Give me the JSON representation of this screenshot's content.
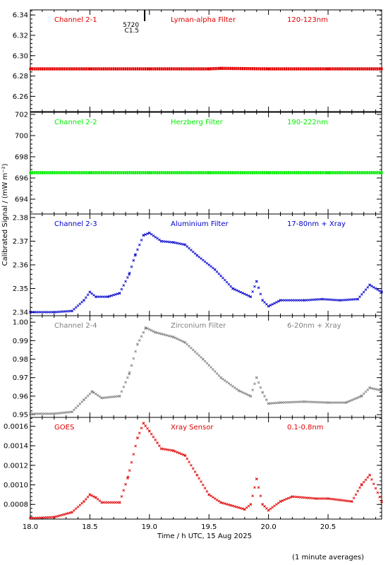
{
  "ylabel": "Calibrated Signal / (mW m⁻²)",
  "xlabel": "Time / h UTC, 15 Aug 2025",
  "footnote": "(1 minute averages)",
  "xlim": [
    18.0,
    20.95
  ],
  "xticks": [
    "18.0",
    "18.5",
    "19.0",
    "19.5",
    "20.0",
    "20.5"
  ],
  "event_marker": {
    "label_top": "5720",
    "label_bottom": "C1.5",
    "time": 18.96
  },
  "chart_data": [
    {
      "type": "scatter",
      "channel_label": "Channel 2-1",
      "filter_label": "Lyman-alpha Filter",
      "band_label": "120-123nm",
      "color": "#e00000",
      "marker": "dot",
      "ylim": [
        6.245,
        6.345
      ],
      "yticks": [
        "6.26",
        "6.28",
        "6.30",
        "6.32",
        "6.34"
      ],
      "series": [
        {
          "x": [
            18.0,
            18.5,
            19.0,
            19.5,
            19.6,
            20.0,
            20.5,
            20.95
          ],
          "y": [
            6.287,
            6.287,
            6.287,
            6.287,
            6.2875,
            6.287,
            6.287,
            6.287
          ]
        }
      ]
    },
    {
      "type": "scatter",
      "channel_label": "Channel 2-2",
      "filter_label": "Herzberg Filter",
      "band_label": "190-222nm",
      "color": "#00ee00",
      "marker": "dot",
      "ylim": [
        692.6,
        702.2
      ],
      "yticks": [
        "694",
        "696",
        "698",
        "700",
        "702"
      ],
      "series": [
        {
          "x": [
            18.0,
            18.5,
            19.0,
            19.5,
            20.0,
            20.5,
            20.95
          ],
          "y": [
            696.5,
            696.5,
            696.5,
            696.5,
            696.5,
            696.5,
            696.5
          ]
        }
      ]
    },
    {
      "type": "scatter",
      "channel_label": "Channel 2-3",
      "filter_label": "Aluminium Filter",
      "band_label": "17-80nm + Xray",
      "color": "#0000cc",
      "marker": "x",
      "ylim": [
        2.3385,
        2.3815
      ],
      "yticks": [
        "2.34",
        "2.35",
        "2.36",
        "2.37",
        "2.38"
      ],
      "series": [
        {
          "x": [
            18.0,
            18.2,
            18.35,
            18.45,
            18.5,
            18.55,
            18.65,
            18.75,
            18.83,
            18.88,
            18.95,
            19.0,
            19.1,
            19.2,
            19.3,
            19.4,
            19.55,
            19.7,
            19.85,
            19.9,
            19.95,
            20.0,
            20.1,
            20.3,
            20.45,
            20.6,
            20.75,
            20.85,
            20.95
          ],
          "y": [
            2.34,
            2.34,
            2.3405,
            2.345,
            2.3485,
            2.3465,
            2.3465,
            2.348,
            2.356,
            2.364,
            2.3725,
            2.3735,
            2.37,
            2.3695,
            2.3685,
            2.364,
            2.358,
            2.35,
            2.3465,
            2.353,
            2.345,
            2.3425,
            2.345,
            2.345,
            2.3455,
            2.345,
            2.3455,
            2.3515,
            2.3485
          ]
        }
      ]
    },
    {
      "type": "scatter",
      "channel_label": "Channel 2-4",
      "filter_label": "Zirconium Filter",
      "band_label": "6-20nm + Xray",
      "color": "#808080",
      "marker": "x",
      "ylim": [
        0.9485,
        1.0035
      ],
      "yticks": [
        "0.95",
        "0.96",
        "0.97",
        "0.98",
        "0.99",
        "1.00"
      ],
      "series": [
        {
          "x": [
            18.0,
            18.2,
            18.35,
            18.45,
            18.52,
            18.6,
            18.75,
            18.83,
            18.9,
            18.97,
            19.05,
            19.2,
            19.3,
            19.45,
            19.6,
            19.75,
            19.85,
            19.9,
            19.95,
            20.0,
            20.1,
            20.3,
            20.5,
            20.65,
            20.78,
            20.85,
            20.95
          ],
          "y": [
            0.9505,
            0.9505,
            0.9515,
            0.958,
            0.9625,
            0.959,
            0.96,
            0.972,
            0.988,
            0.997,
            0.9945,
            0.992,
            0.989,
            0.98,
            0.97,
            0.963,
            0.96,
            0.97,
            0.962,
            0.956,
            0.9565,
            0.957,
            0.9565,
            0.9565,
            0.96,
            0.9645,
            0.963
          ]
        }
      ]
    },
    {
      "type": "scatter",
      "channel_label": "GOES",
      "filter_label": "Xray Sensor",
      "band_label": "0.1-0.8nm",
      "color": "#e00000",
      "marker": "x",
      "ylim": [
        0.00065,
        0.00169
      ],
      "yticks": [
        "0.0008",
        "0.0010",
        "0.0012",
        "0.0014",
        "0.0016"
      ],
      "series": [
        {
          "x": [
            18.0,
            18.2,
            18.35,
            18.45,
            18.5,
            18.55,
            18.6,
            18.75,
            18.82,
            18.9,
            18.95,
            19.0,
            19.1,
            19.2,
            19.3,
            19.4,
            19.5,
            19.6,
            19.8,
            19.85,
            19.9,
            19.95,
            20.0,
            20.1,
            20.2,
            20.4,
            20.5,
            20.7,
            20.78,
            20.85,
            20.95
          ],
          "y": [
            0.00066,
            0.00067,
            0.00072,
            0.00083,
            0.0009,
            0.00087,
            0.00082,
            0.00082,
            0.00108,
            0.00148,
            0.00163,
            0.00155,
            0.00137,
            0.00135,
            0.0013,
            0.0011,
            0.0009,
            0.00082,
            0.00075,
            0.0008,
            0.00106,
            0.0008,
            0.00074,
            0.00083,
            0.00088,
            0.00086,
            0.00086,
            0.00083,
            0.001,
            0.0011,
            0.00083
          ]
        }
      ]
    }
  ]
}
